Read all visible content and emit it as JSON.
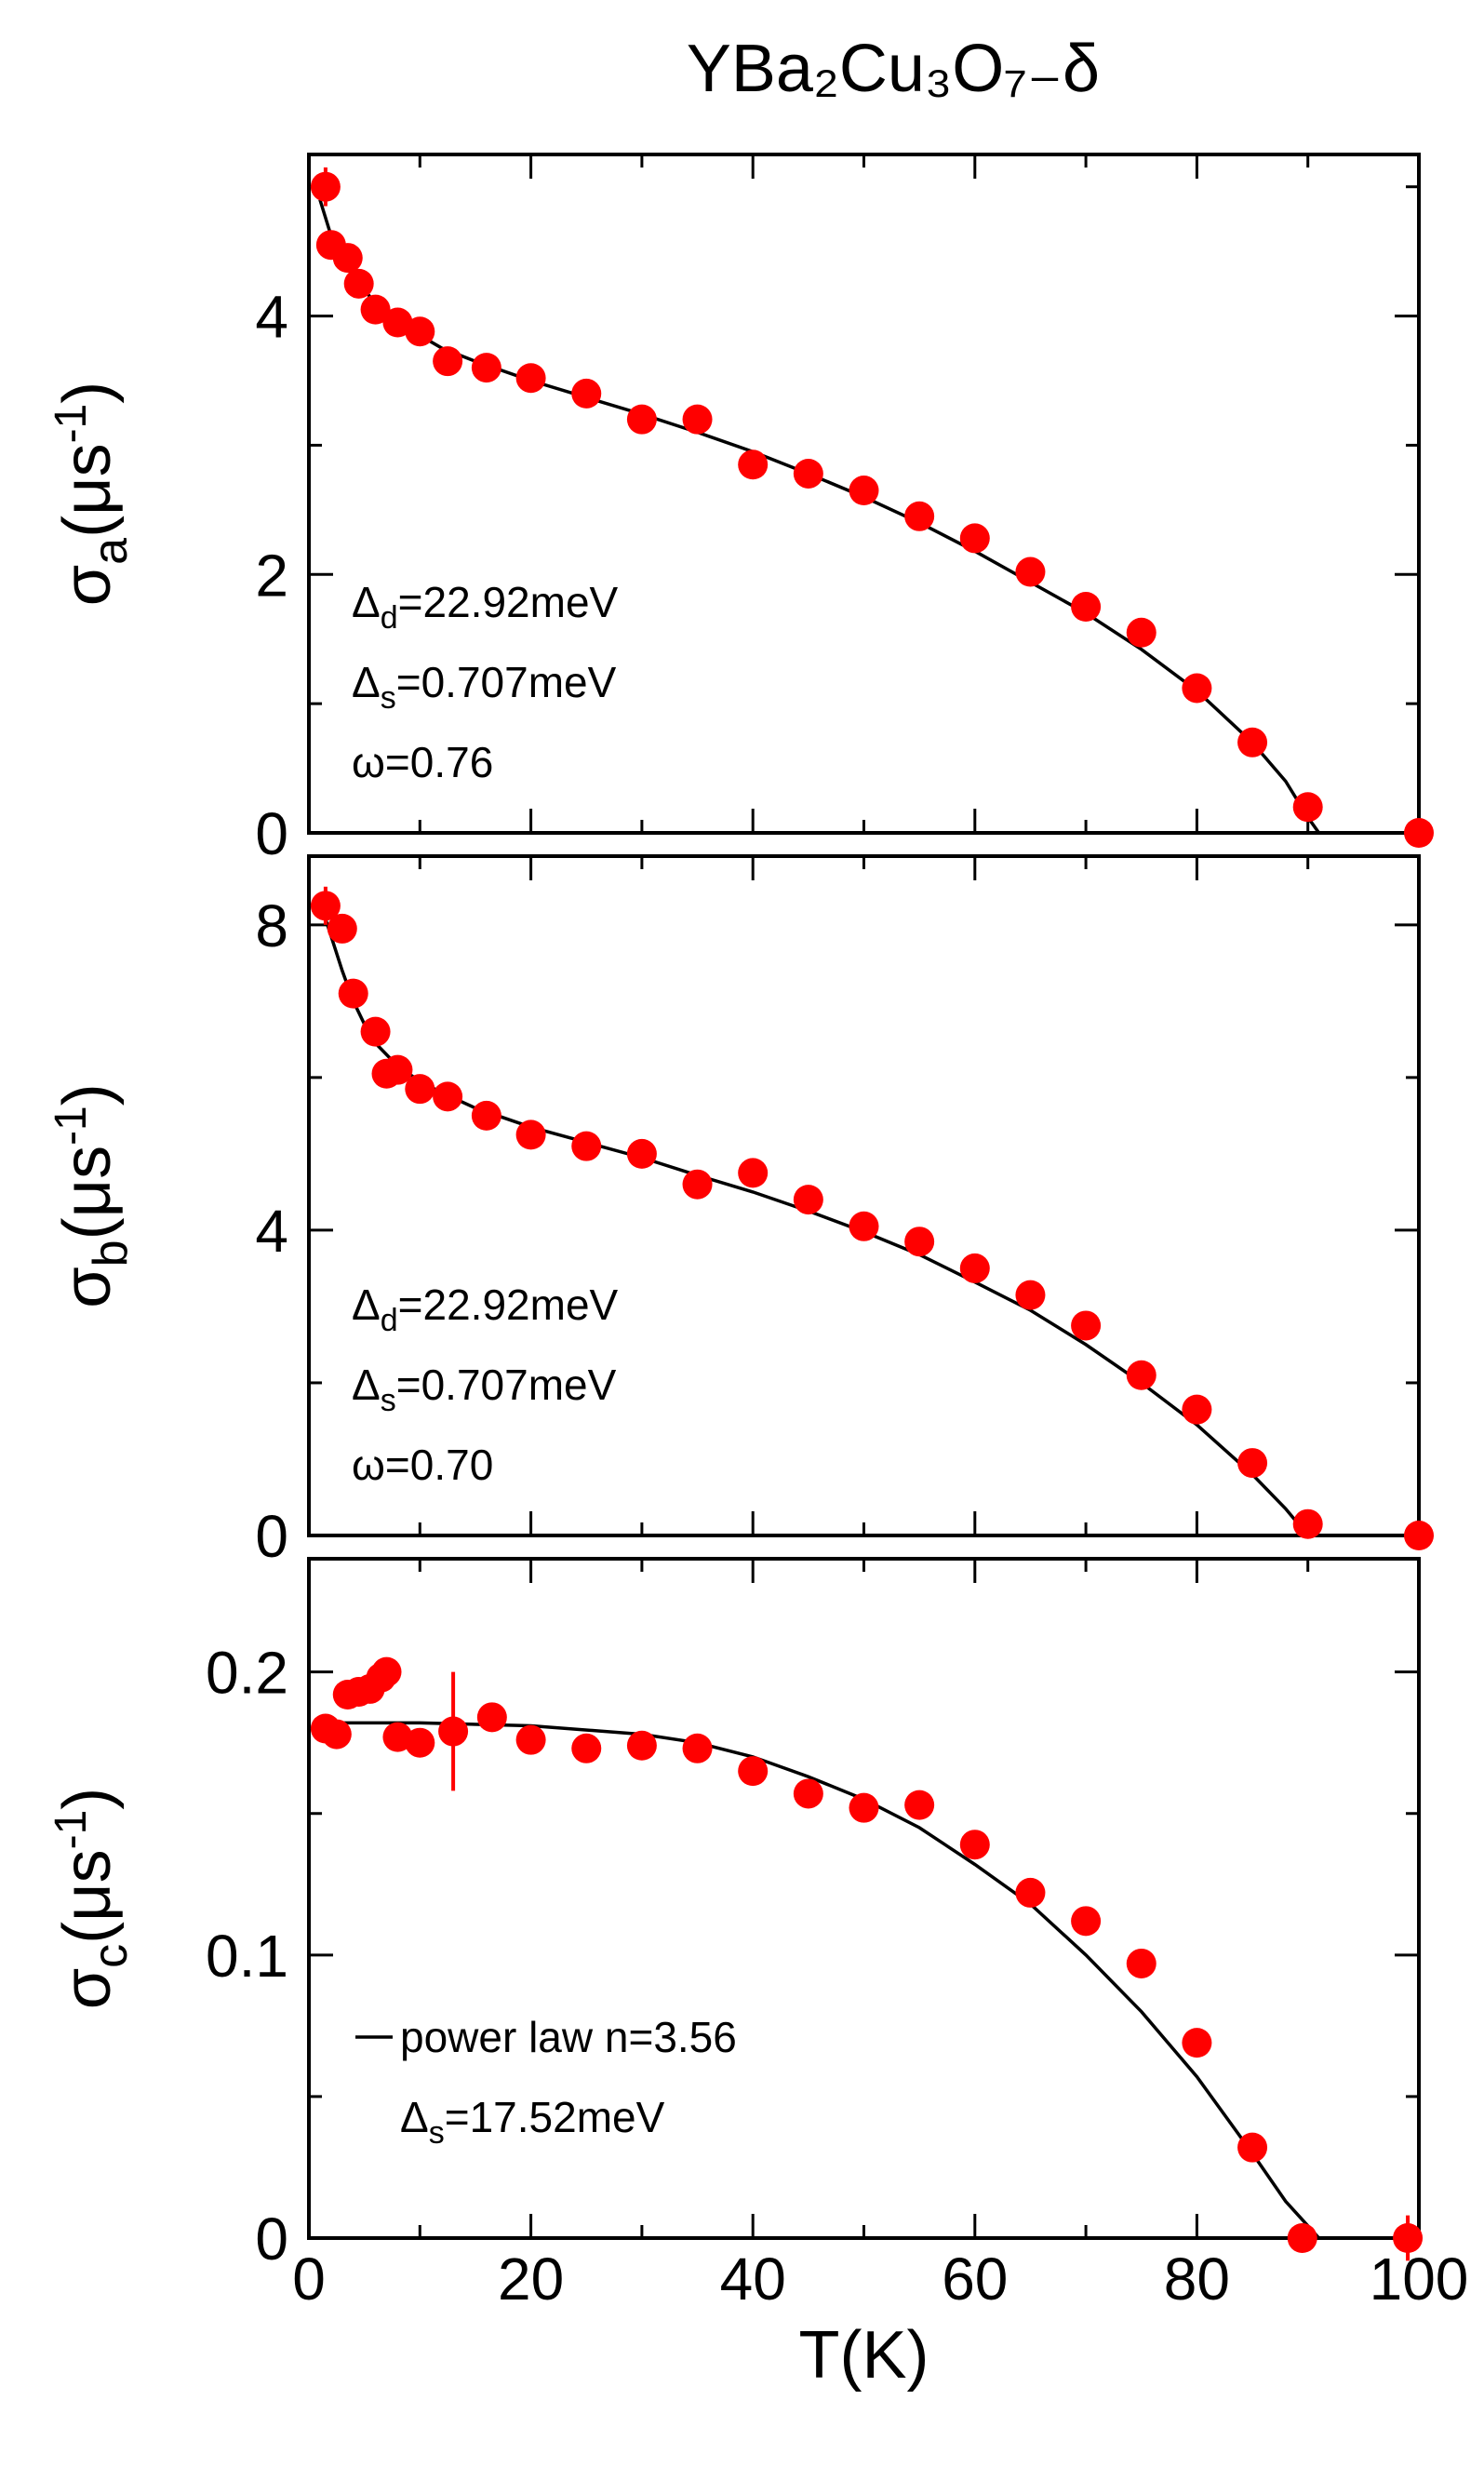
{
  "title": "YBa₂Cu₃O₇₋δ",
  "colors": {
    "points": "#ff0000",
    "fit": "#000000",
    "axes": "#000000"
  },
  "x_tick_labels": [
    "0",
    "20",
    "40",
    "60",
    "80",
    "100"
  ],
  "x_label": "T(K)",
  "chart_data": [
    {
      "type": "scatter",
      "panel": "a",
      "xlabel": "T(K)",
      "ylabel": "σa(μs-1)",
      "ylabel_symbol": "σ",
      "ylabel_sub": "a",
      "ylabel_unit": "(μs",
      "ylabel_sup": "-1",
      "ylabel_close": ")",
      "xlim": [
        0,
        100
      ],
      "ylim": [
        0,
        5.25
      ],
      "x_ticks": [
        0,
        20,
        40,
        60,
        80,
        100
      ],
      "y_ticks": [
        0,
        2,
        4
      ],
      "y_tick_labels": [
        "0",
        "2",
        "4"
      ],
      "y_minor_ticks": [
        1,
        3,
        5
      ],
      "points": {
        "x": [
          1.5,
          2.0,
          3.5,
          4.5,
          6.0,
          8.0,
          10.0,
          12.5,
          16.0,
          20.0,
          25.0,
          30.0,
          35.0,
          40.0,
          45.0,
          50.0,
          55.0,
          60.0,
          65.0,
          70.0,
          75.0,
          80.0,
          85.0,
          90.0,
          100.0
        ],
        "y": [
          5.0,
          4.55,
          4.45,
          4.25,
          4.05,
          3.95,
          3.88,
          3.65,
          3.6,
          3.52,
          3.4,
          3.2,
          3.2,
          2.85,
          2.78,
          2.65,
          2.45,
          2.28,
          2.02,
          1.75,
          1.55,
          1.12,
          0.7,
          0.2,
          0.0
        ],
        "err": [
          0.15,
          0,
          0,
          0,
          0,
          0,
          0,
          0,
          0,
          0,
          0,
          0,
          0,
          0,
          0,
          0,
          0,
          0,
          0,
          0,
          0,
          0,
          0,
          0,
          0.06
        ]
      },
      "fit": {
        "x": [
          1.0,
          2.0,
          3.0,
          4.0,
          5.0,
          6.0,
          8.0,
          10.0,
          12.0,
          15.0,
          20.0,
          25.0,
          30.0,
          35.0,
          40.0,
          45.0,
          50.0,
          55.0,
          60.0,
          65.0,
          70.0,
          75.0,
          80.0,
          85.0,
          88.0,
          90.0,
          91.0,
          100.0
        ],
        "y": [
          4.9,
          4.62,
          4.45,
          4.3,
          4.2,
          4.1,
          3.95,
          3.85,
          3.75,
          3.65,
          3.5,
          3.37,
          3.24,
          3.1,
          2.95,
          2.78,
          2.6,
          2.4,
          2.18,
          1.94,
          1.7,
          1.42,
          1.1,
          0.7,
          0.4,
          0.12,
          0.0,
          0.0
        ]
      },
      "annotations": [
        {
          "symbol": "Δ",
          "sub": "d",
          "rest": "=22.92meV"
        },
        {
          "symbol": "Δ",
          "sub": "s",
          "rest": "=0.707meV"
        },
        {
          "symbol": "ω=0.76",
          "sub": "",
          "rest": ""
        }
      ]
    },
    {
      "type": "scatter",
      "panel": "b",
      "xlabel": "T(K)",
      "ylabel": "σb(μs-1)",
      "ylabel_symbol": "σ",
      "ylabel_sub": "b",
      "ylabel_unit": "(μs",
      "ylabel_sup": "-1",
      "ylabel_close": ")",
      "xlim": [
        0,
        100
      ],
      "ylim": [
        0,
        8.9
      ],
      "x_ticks": [
        0,
        20,
        40,
        60,
        80,
        100
      ],
      "y_ticks": [
        0,
        4,
        8
      ],
      "y_tick_labels": [
        "0",
        "4",
        "8"
      ],
      "y_minor_ticks": [
        2,
        6
      ],
      "points": {
        "x": [
          1.5,
          3.0,
          4.0,
          6.0,
          7.0,
          8.0,
          10.0,
          12.5,
          16.0,
          20.0,
          25.0,
          30.0,
          35.0,
          40.0,
          45.0,
          50.0,
          55.0,
          60.0,
          65.0,
          70.0,
          75.0,
          80.0,
          85.0,
          90.0,
          100.0
        ],
        "y": [
          8.25,
          7.95,
          7.1,
          6.6,
          6.05,
          6.1,
          5.85,
          5.75,
          5.5,
          5.25,
          5.1,
          5.0,
          4.6,
          4.75,
          4.4,
          4.05,
          3.85,
          3.5,
          3.15,
          2.75,
          2.1,
          1.65,
          0.95,
          0.15,
          0.0
        ],
        "err": [
          0.25,
          0,
          0,
          0,
          0,
          0,
          0,
          0,
          0,
          0,
          0,
          0,
          0,
          0,
          0,
          0,
          0,
          0,
          0,
          0,
          0,
          0,
          0,
          0,
          0.1
        ]
      },
      "fit": {
        "x": [
          1.0,
          2.0,
          3.0,
          4.0,
          5.0,
          6.0,
          8.0,
          10.0,
          12.0,
          15.0,
          20.0,
          25.0,
          30.0,
          35.0,
          40.0,
          45.0,
          50.0,
          55.0,
          60.0,
          65.0,
          70.0,
          75.0,
          80.0,
          85.0,
          88.0,
          90.0,
          100.0
        ],
        "y": [
          8.3,
          7.85,
          7.4,
          7.0,
          6.7,
          6.45,
          6.15,
          5.95,
          5.8,
          5.6,
          5.35,
          5.15,
          4.95,
          4.72,
          4.5,
          4.25,
          3.98,
          3.68,
          3.32,
          2.95,
          2.5,
          2.0,
          1.45,
          0.8,
          0.35,
          0.0,
          0.0
        ]
      },
      "annotations": [
        {
          "symbol": "Δ",
          "sub": "d",
          "rest": "=22.92meV"
        },
        {
          "symbol": "Δ",
          "sub": "s",
          "rest": "=0.707meV"
        },
        {
          "symbol": "ω=0.70",
          "sub": "",
          "rest": ""
        }
      ]
    },
    {
      "type": "scatter",
      "panel": "c",
      "xlabel": "T(K)",
      "ylabel": "σc(μs-1)",
      "ylabel_symbol": "σ",
      "ylabel_sub": "c",
      "ylabel_unit": "(μs",
      "ylabel_sup": "-1",
      "ylabel_close": ")",
      "xlim": [
        0,
        100
      ],
      "ylim": [
        0,
        0.24
      ],
      "x_ticks": [
        0,
        20,
        40,
        60,
        80,
        100
      ],
      "y_ticks": [
        0,
        0.1,
        0.2
      ],
      "y_tick_labels": [
        "0",
        "0.1",
        "0.2"
      ],
      "y_minor_ticks": [
        0.05,
        0.15
      ],
      "points": {
        "x": [
          1.5,
          2.5,
          3.5,
          4.5,
          5.5,
          6.5,
          7.0,
          8.0,
          10.0,
          13.0,
          16.5,
          20.0,
          25.0,
          30.0,
          35.0,
          40.0,
          45.0,
          50.0,
          55.0,
          60.0,
          65.0,
          70.0,
          75.0,
          80.0,
          85.0,
          89.5,
          99.0
        ],
        "y": [
          0.18,
          0.178,
          0.192,
          0.193,
          0.194,
          0.198,
          0.2,
          0.177,
          0.175,
          0.179,
          0.184,
          0.176,
          0.173,
          0.174,
          0.173,
          0.165,
          0.157,
          0.152,
          0.153,
          0.139,
          0.122,
          0.112,
          0.097,
          0.069,
          0.032,
          0.0,
          0.0
        ],
        "err": [
          0,
          0,
          0,
          0,
          0,
          0,
          0,
          0,
          0,
          0.021,
          0,
          0,
          0,
          0,
          0,
          0,
          0,
          0,
          0,
          0,
          0,
          0,
          0,
          0,
          0,
          0,
          0.008
        ]
      },
      "fit": {
        "x": [
          1.0,
          10.0,
          20.0,
          30.0,
          35.0,
          40.0,
          45.0,
          50.0,
          55.0,
          60.0,
          65.0,
          70.0,
          75.0,
          80.0,
          85.0,
          88.0,
          91.0,
          100.0
        ],
        "y": [
          0.182,
          0.182,
          0.181,
          0.178,
          0.175,
          0.17,
          0.163,
          0.155,
          0.145,
          0.132,
          0.118,
          0.1,
          0.08,
          0.057,
          0.03,
          0.013,
          0.0,
          0.0
        ]
      },
      "annotations": [
        {
          "symbol": "power law n=3.56",
          "sub": "",
          "rest": "",
          "legend_line": true
        },
        {
          "symbol": "Δ",
          "sub": "s",
          "rest": "=17.52meV"
        }
      ]
    }
  ]
}
